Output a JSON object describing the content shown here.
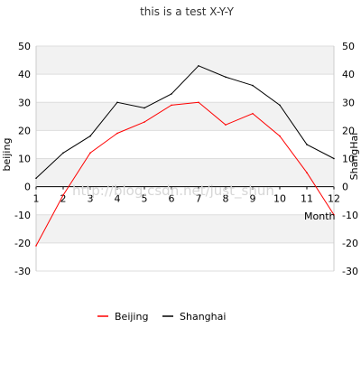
{
  "chart_data": {
    "type": "line",
    "title": "this is a test X-Y-Y",
    "xlabel": "Month",
    "ylabel_left": "beijing",
    "ylabel_right": "ShangHai",
    "x": [
      1,
      2,
      3,
      4,
      5,
      6,
      7,
      8,
      9,
      10,
      11,
      12
    ],
    "xlim": [
      1,
      12
    ],
    "ylim": [
      -30,
      50
    ],
    "y_ticks": [
      -30,
      -20,
      -10,
      0,
      10,
      20,
      30,
      40,
      50
    ],
    "grid": true,
    "legend_position": "bottom",
    "watermark": "http://blog.csdn.net/just_shun",
    "series": [
      {
        "name": "Beijing",
        "color": "#ff0000",
        "axis": "left",
        "values": [
          -21,
          -3,
          12,
          19,
          23,
          29,
          30,
          22,
          26,
          18,
          5,
          -10
        ]
      },
      {
        "name": "Shanghai",
        "color": "#000000",
        "axis": "right",
        "values": [
          3,
          12,
          18,
          30,
          28,
          33,
          43,
          39,
          36,
          29,
          15,
          10
        ]
      }
    ]
  }
}
